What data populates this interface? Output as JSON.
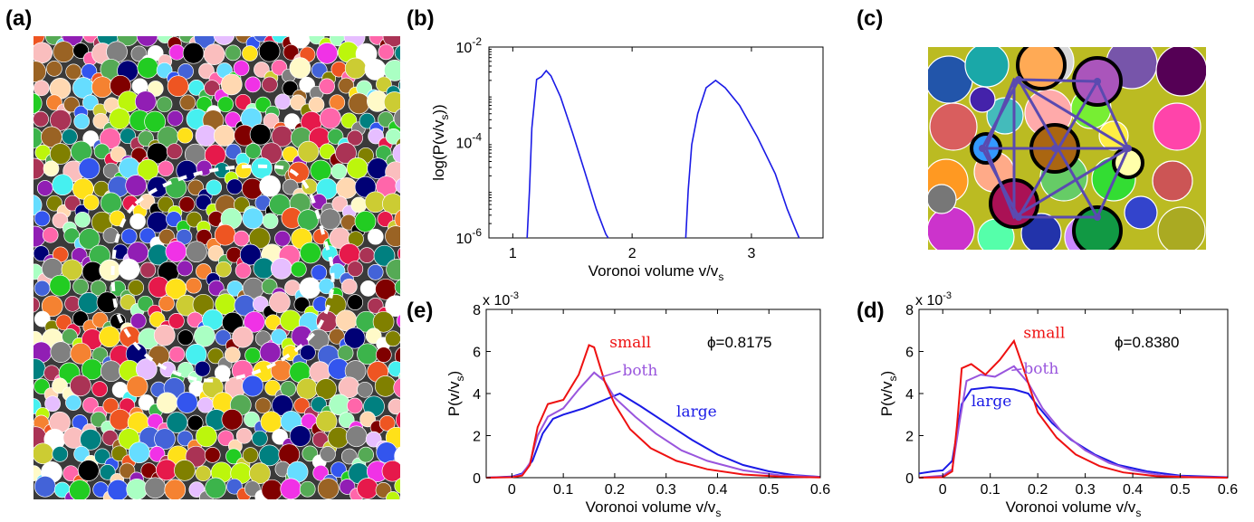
{
  "panel_labels": {
    "a": "(a)",
    "b": "(b)",
    "c": "(c)",
    "d": "(d)",
    "e": "(e)"
  },
  "colors": {
    "small": "#ee1111",
    "both": "#9955dd",
    "large": "#1a1ae6",
    "b_line": "#1a1ae6"
  },
  "panel_a": {
    "description_visible": false
  },
  "panel_c": {
    "description_visible": false
  },
  "chart_data": [
    {
      "id": "b",
      "type": "line",
      "xlabel": "Voronoi volume v/v",
      "xlabel_sub": "s",
      "ylabel": "log(P(v/v",
      "ylabel_sub": "s",
      "ylabel_end": "))",
      "yscale": "log",
      "xlim": [
        0.8,
        3.6
      ],
      "ylim_exp": [
        -6,
        -2
      ],
      "xticks": [
        1,
        2,
        3
      ],
      "yticks": [
        {
          "base": "10",
          "exp": "-2",
          "value_exp": -2
        },
        {
          "base": "10",
          "exp": "-4",
          "value_exp": -4
        },
        {
          "base": "10",
          "exp": "-6",
          "value_exp": -6
        }
      ],
      "series": [
        {
          "points": [
            [
              1.12,
              1e-06
            ],
            [
              1.14,
              1e-05
            ],
            [
              1.16,
              0.0002
            ],
            [
              1.2,
              0.0021
            ],
            [
              1.24,
              0.0024
            ],
            [
              1.28,
              0.0032
            ],
            [
              1.32,
              0.0025
            ],
            [
              1.4,
              0.0009
            ],
            [
              1.5,
              0.00016
            ],
            [
              1.6,
              2.6e-05
            ],
            [
              1.7,
              4e-06
            ],
            [
              1.78,
              1.2e-06
            ],
            [
              1.8,
              1e-06
            ]
          ]
        },
        {
          "points": [
            [
              2.45,
              1e-06
            ],
            [
              2.47,
              1e-05
            ],
            [
              2.5,
              9e-05
            ],
            [
              2.55,
              0.0004
            ],
            [
              2.62,
              0.0014
            ],
            [
              2.7,
              0.002
            ],
            [
              2.78,
              0.0014
            ],
            [
              2.9,
              0.0006
            ],
            [
              3.05,
              0.00013
            ],
            [
              3.2,
              2.2e-05
            ],
            [
              3.3,
              4e-06
            ],
            [
              3.38,
              1.3e-06
            ],
            [
              3.4,
              1e-06
            ]
          ]
        }
      ]
    },
    {
      "id": "e",
      "type": "line",
      "xlabel": "Voronoi volume v/v",
      "xlabel_sub": "s",
      "ylabel": "P(v/v",
      "ylabel_sub": "s",
      "ylabel_end": ")",
      "y_multiplier": "x 10",
      "y_multiplier_exp": "-3",
      "xlim": [
        -0.05,
        0.6
      ],
      "ylim": [
        0,
        8
      ],
      "xticks": [
        "0",
        "0.1",
        "0.2",
        "0.3",
        "0.4",
        "0.5",
        "0.6"
      ],
      "yticks": [
        "0",
        "2",
        "4",
        "6",
        "8"
      ],
      "annotation": "ϕ=0.8175",
      "series": [
        {
          "name": "small",
          "color_key": "small",
          "x": [
            -0.05,
            0.0,
            0.02,
            0.035,
            0.05,
            0.07,
            0.1,
            0.13,
            0.15,
            0.16,
            0.18,
            0.2,
            0.23,
            0.27,
            0.32,
            0.38,
            0.45,
            0.52,
            0.6
          ],
          "values": [
            0,
            0.02,
            0.1,
            0.6,
            2.4,
            3.5,
            3.7,
            4.9,
            6.3,
            6.2,
            4.6,
            3.5,
            2.3,
            1.4,
            0.8,
            0.4,
            0.15,
            0.05,
            0.01
          ]
        },
        {
          "name": "both",
          "color_key": "both",
          "x": [
            -0.05,
            0.0,
            0.02,
            0.035,
            0.05,
            0.07,
            0.1,
            0.13,
            0.16,
            0.18,
            0.2,
            0.24,
            0.28,
            0.33,
            0.38,
            0.45,
            0.52,
            0.6
          ],
          "values": [
            0,
            0.04,
            0.15,
            0.7,
            2.0,
            2.9,
            3.3,
            4.2,
            5.0,
            4.6,
            3.8,
            2.9,
            2.1,
            1.3,
            0.8,
            0.35,
            0.12,
            0.03
          ]
        },
        {
          "name": "large",
          "color_key": "large",
          "x": [
            -0.05,
            0.0,
            0.02,
            0.04,
            0.06,
            0.08,
            0.1,
            0.14,
            0.18,
            0.21,
            0.25,
            0.3,
            0.35,
            0.4,
            0.45,
            0.5,
            0.55,
            0.6
          ],
          "values": [
            0,
            0.05,
            0.2,
            0.8,
            2.1,
            2.8,
            3.0,
            3.3,
            3.7,
            4.0,
            3.4,
            2.6,
            1.8,
            1.1,
            0.6,
            0.3,
            0.12,
            0.04
          ]
        }
      ]
    },
    {
      "id": "d",
      "type": "line",
      "xlabel": "Voronoi volume v/v",
      "xlabel_sub": "s",
      "ylabel": "P(v/v",
      "ylabel_sub": "s",
      "ylabel_end": ")",
      "y_multiplier": "x 10",
      "y_multiplier_exp": "-3",
      "xlim": [
        -0.05,
        0.6
      ],
      "ylim": [
        0,
        8
      ],
      "xticks": [
        "0",
        "0.1",
        "0.2",
        "0.3",
        "0.4",
        "0.5",
        "0.6"
      ],
      "yticks": [
        "0",
        "2",
        "4",
        "6",
        "8"
      ],
      "annotation": "ϕ=0.8380",
      "series": [
        {
          "name": "small",
          "color_key": "small",
          "x": [
            -0.05,
            0.0,
            0.02,
            0.03,
            0.04,
            0.06,
            0.09,
            0.12,
            0.15,
            0.17,
            0.2,
            0.24,
            0.28,
            0.33,
            0.38,
            0.45,
            0.52,
            0.6
          ],
          "values": [
            0,
            0.02,
            0.3,
            2.5,
            5.2,
            5.4,
            4.9,
            5.6,
            6.5,
            5.2,
            3.1,
            1.9,
            1.1,
            0.55,
            0.25,
            0.07,
            0.02,
            0
          ]
        },
        {
          "name": "both",
          "color_key": "both",
          "x": [
            -0.05,
            0.0,
            0.02,
            0.035,
            0.05,
            0.08,
            0.11,
            0.15,
            0.18,
            0.21,
            0.25,
            0.3,
            0.35,
            0.4,
            0.46,
            0.52,
            0.6
          ],
          "values": [
            0,
            0.1,
            0.4,
            2.6,
            4.6,
            4.9,
            4.8,
            5.3,
            4.5,
            3.3,
            2.2,
            1.3,
            0.7,
            0.35,
            0.12,
            0.04,
            0.01
          ]
        },
        {
          "name": "large",
          "color_key": "large",
          "x": [
            -0.05,
            -0.02,
            0.0,
            0.02,
            0.04,
            0.06,
            0.1,
            0.15,
            0.18,
            0.2,
            0.23,
            0.27,
            0.32,
            0.37,
            0.43,
            0.5,
            0.6
          ],
          "values": [
            0.2,
            0.3,
            0.35,
            0.8,
            3.5,
            4.2,
            4.3,
            4.2,
            4.0,
            3.4,
            2.6,
            1.8,
            1.1,
            0.6,
            0.3,
            0.1,
            0.02
          ]
        }
      ]
    }
  ]
}
